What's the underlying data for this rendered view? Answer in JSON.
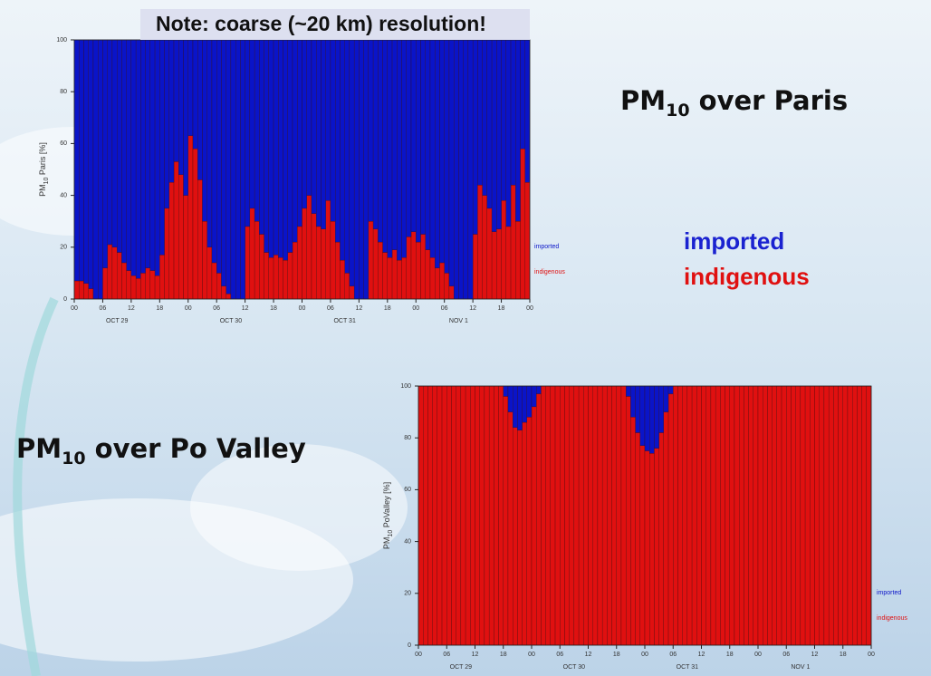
{
  "slide": {
    "note": "Note: coarse (~20 km) resolution!",
    "heading1": [
      "PM",
      "10",
      " over Paris"
    ],
    "heading2": [
      "PM",
      "10",
      " over Po Valley"
    ]
  },
  "chart_data": [
    {
      "type": "bar",
      "stacked": true,
      "ylabel": [
        "PM",
        "10",
        " Paris [%]"
      ],
      "ylim": [
        0,
        100
      ],
      "yticks": [
        0,
        20,
        40,
        60,
        80,
        100
      ],
      "xlim": [
        0,
        96
      ],
      "xticks": [
        {
          "value": 0,
          "label": "00"
        },
        {
          "value": 6,
          "label": "06"
        },
        {
          "value": 12,
          "label": "12"
        },
        {
          "value": 18,
          "label": "18"
        },
        {
          "value": 24,
          "label": "00"
        },
        {
          "value": 30,
          "label": "06"
        },
        {
          "value": 36,
          "label": "12"
        },
        {
          "value": 42,
          "label": "18"
        },
        {
          "value": 48,
          "label": "00"
        },
        {
          "value": 54,
          "label": "06"
        },
        {
          "value": 60,
          "label": "12"
        },
        {
          "value": 66,
          "label": "18"
        },
        {
          "value": 72,
          "label": "00"
        },
        {
          "value": 78,
          "label": "06"
        },
        {
          "value": 84,
          "label": "12"
        },
        {
          "value": 90,
          "label": "18"
        },
        {
          "value": 96,
          "label": "00"
        }
      ],
      "day_labels": [
        {
          "value": 9,
          "label": "OCT 29"
        },
        {
          "value": 33,
          "label": "OCT 30"
        },
        {
          "value": 57,
          "label": "OCT 31"
        },
        {
          "value": 81,
          "label": "NOV  1"
        }
      ],
      "series": [
        {
          "name": "indigenous",
          "color": "#e01010",
          "values": [
            7,
            7,
            6,
            4,
            0,
            0,
            12,
            21,
            20,
            18,
            14,
            11,
            9,
            8,
            10,
            12,
            11,
            9,
            17,
            35,
            45,
            53,
            48,
            40,
            63,
            58,
            46,
            30,
            20,
            14,
            10,
            5,
            2,
            0,
            0,
            0,
            28,
            35,
            30,
            25,
            18,
            16,
            17,
            16,
            15,
            18,
            22,
            28,
            35,
            40,
            33,
            28,
            27,
            38,
            30,
            22,
            15,
            10,
            5,
            0,
            0,
            0,
            30,
            27,
            22,
            18,
            16,
            19,
            15,
            16,
            24,
            26,
            22,
            25,
            19,
            16,
            12,
            14,
            10,
            5,
            0,
            0,
            0,
            0,
            25,
            44,
            40,
            35,
            26,
            27,
            38,
            28,
            44,
            30,
            58,
            45
          ]
        },
        {
          "name": "imported",
          "color": "#0a14c8",
          "values": [
            93,
            93,
            94,
            96,
            100,
            100,
            88,
            79,
            80,
            82,
            86,
            89,
            91,
            92,
            90,
            88,
            89,
            91,
            83,
            65,
            55,
            47,
            52,
            60,
            37,
            42,
            54,
            70,
            80,
            86,
            90,
            95,
            98,
            100,
            100,
            100,
            72,
            65,
            70,
            75,
            82,
            84,
            83,
            84,
            85,
            82,
            78,
            72,
            65,
            60,
            67,
            72,
            73,
            62,
            70,
            78,
            85,
            90,
            95,
            100,
            100,
            100,
            70,
            73,
            78,
            82,
            84,
            81,
            85,
            84,
            76,
            74,
            78,
            75,
            81,
            84,
            88,
            86,
            90,
            95,
            100,
            100,
            100,
            100,
            75,
            56,
            60,
            65,
            74,
            73,
            62,
            72,
            56,
            70,
            42,
            55
          ]
        }
      ]
    },
    {
      "type": "bar",
      "stacked": true,
      "ylabel": [
        "PM",
        "10",
        " PoValley [%]"
      ],
      "ylim": [
        0,
        100
      ],
      "yticks": [
        0,
        20,
        40,
        60,
        80,
        100
      ],
      "xlim": [
        0,
        96
      ],
      "xticks": [
        {
          "value": 0,
          "label": "00"
        },
        {
          "value": 6,
          "label": "06"
        },
        {
          "value": 12,
          "label": "12"
        },
        {
          "value": 18,
          "label": "18"
        },
        {
          "value": 24,
          "label": "00"
        },
        {
          "value": 30,
          "label": "06"
        },
        {
          "value": 36,
          "label": "12"
        },
        {
          "value": 42,
          "label": "18"
        },
        {
          "value": 48,
          "label": "00"
        },
        {
          "value": 54,
          "label": "06"
        },
        {
          "value": 60,
          "label": "12"
        },
        {
          "value": 66,
          "label": "18"
        },
        {
          "value": 72,
          "label": "00"
        },
        {
          "value": 78,
          "label": "06"
        },
        {
          "value": 84,
          "label": "12"
        },
        {
          "value": 90,
          "label": "18"
        },
        {
          "value": 96,
          "label": "00"
        }
      ],
      "day_labels": [
        {
          "value": 9,
          "label": "OCT 29"
        },
        {
          "value": 33,
          "label": "OCT 30"
        },
        {
          "value": 57,
          "label": "OCT 31"
        },
        {
          "value": 81,
          "label": "NOV  1"
        }
      ],
      "series": [
        {
          "name": "indigenous",
          "color": "#e01010",
          "values": [
            100,
            100,
            100,
            100,
            100,
            100,
            100,
            100,
            100,
            100,
            100,
            100,
            100,
            100,
            100,
            100,
            100,
            100,
            96,
            90,
            84,
            83,
            86,
            88,
            92,
            97,
            100,
            100,
            100,
            100,
            100,
            100,
            100,
            100,
            100,
            100,
            100,
            100,
            100,
            100,
            100,
            100,
            100,
            100,
            96,
            88,
            82,
            77,
            75,
            74,
            76,
            82,
            90,
            97,
            100,
            100,
            100,
            100,
            100,
            100,
            100,
            100,
            100,
            100,
            100,
            100,
            100,
            100,
            100,
            100,
            100,
            100,
            100,
            100,
            100,
            100,
            100,
            100,
            100,
            100,
            100,
            100,
            100,
            100,
            100,
            100,
            100,
            100,
            100,
            100,
            100,
            100,
            100,
            100,
            100,
            100
          ]
        },
        {
          "name": "imported",
          "color": "#0a14c8",
          "values": [
            0,
            0,
            0,
            0,
            0,
            0,
            0,
            0,
            0,
            0,
            0,
            0,
            0,
            0,
            0,
            0,
            0,
            0,
            4,
            10,
            16,
            17,
            14,
            12,
            8,
            3,
            0,
            0,
            0,
            0,
            0,
            0,
            0,
            0,
            0,
            0,
            0,
            0,
            0,
            0,
            0,
            0,
            0,
            0,
            4,
            12,
            18,
            23,
            25,
            26,
            24,
            18,
            10,
            3,
            0,
            0,
            0,
            0,
            0,
            0,
            0,
            0,
            0,
            0,
            0,
            0,
            0,
            0,
            0,
            0,
            0,
            0,
            0,
            0,
            0,
            0,
            0,
            0,
            0,
            0,
            0,
            0,
            0,
            0,
            0,
            0,
            0,
            0,
            0,
            0,
            0,
            0,
            0,
            0,
            0,
            0
          ]
        }
      ]
    }
  ]
}
